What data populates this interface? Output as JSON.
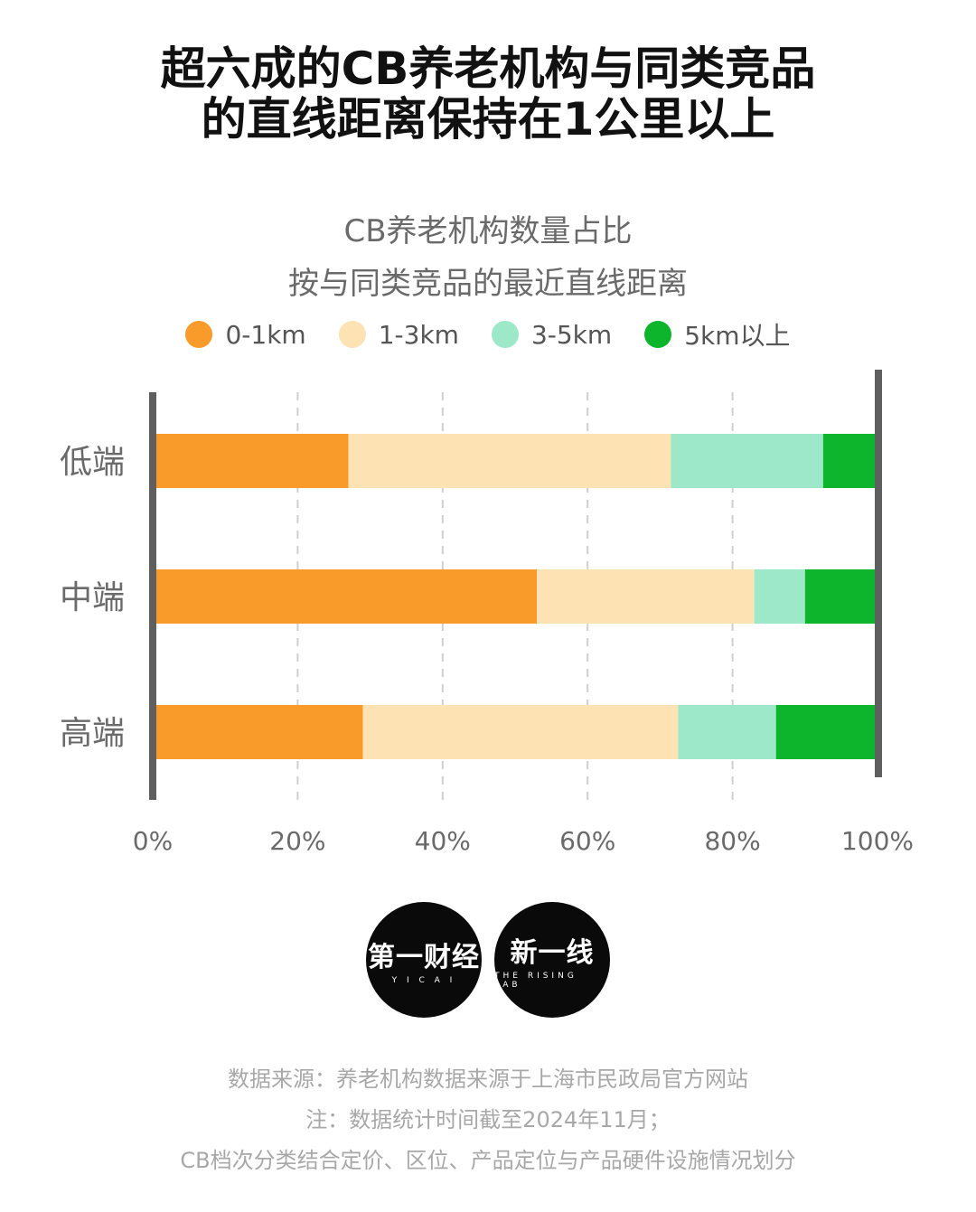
{
  "headline": {
    "line1": "超六成的CB养老机构与同类竞品",
    "line2": "的直线距离保持在1公里以上"
  },
  "chart_data": {
    "type": "bar",
    "orientation": "horizontal",
    "stacked": true,
    "title": "CB养老机构数量占比",
    "subtitle": "按与同类竞品的最近直线距离",
    "categories": [
      "低端",
      "中端",
      "高端"
    ],
    "series": [
      {
        "name": "0-1km",
        "color": "#F99B2A",
        "values": [
          27,
          53,
          29
        ]
      },
      {
        "name": "1-3km",
        "color": "#FDE3B4",
        "values": [
          44.5,
          30,
          43.5
        ]
      },
      {
        "name": "3-5km",
        "color": "#9DE8C8",
        "values": [
          21,
          7,
          13.5
        ]
      },
      {
        "name": "5km以上",
        "color": "#0DB52D",
        "values": [
          7.5,
          10,
          14
        ]
      }
    ],
    "xlim": [
      0,
      100
    ],
    "xticks": [
      "0%",
      "20%",
      "40%",
      "60%",
      "80%",
      "100%"
    ],
    "grid": "vertical-dashed",
    "legend_position": "top"
  },
  "logos": {
    "yicai": {
      "main": "第一财经",
      "sub": "Y I C A I"
    },
    "rising": {
      "main": "新一线",
      "sub": "THE RISING LAB"
    }
  },
  "footnotes": [
    "数据来源：养老机构数据来源于上海市民政局官方网站",
    "注：数据统计时间截至2024年11月；",
    "CB档次分类结合定价、区位、产品定位与产品硬件设施情况划分"
  ]
}
